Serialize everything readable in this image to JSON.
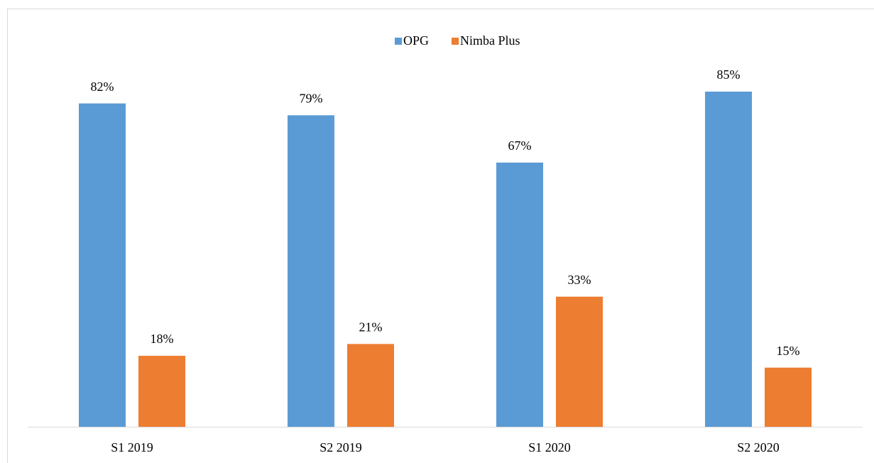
{
  "chart_data": {
    "type": "bar",
    "categories": [
      "S1 2019",
      "S2 2019",
      "S1 2020",
      "S2 2020"
    ],
    "series": [
      {
        "name": "OPG",
        "color": "#5b9bd5",
        "values": [
          82,
          79,
          67,
          85
        ],
        "value_labels": [
          "82%",
          "79%",
          "67%",
          "85%"
        ]
      },
      {
        "name": "Nimba Plus",
        "color": "#ed7d31",
        "values": [
          18,
          21,
          33,
          15
        ],
        "value_labels": [
          "18%",
          "21%",
          "33%",
          "15%"
        ]
      }
    ],
    "legend": "top"
  }
}
